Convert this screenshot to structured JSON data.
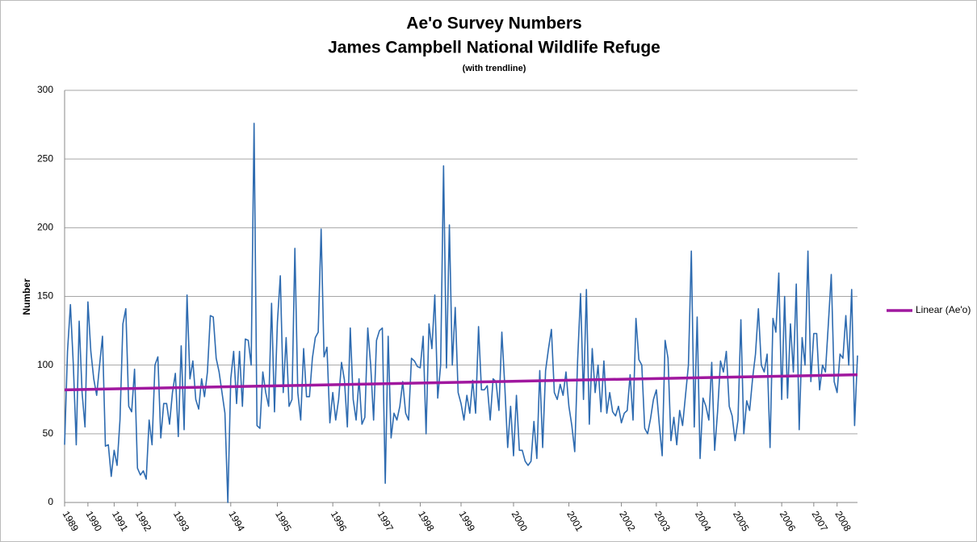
{
  "chart_data": {
    "type": "line",
    "title": "Ae'o Survey Numbers",
    "subtitle": "James Campbell National Wildlife Refuge",
    "note": "(with trendline)",
    "y_label": "Number",
    "categories": [
      "1989",
      null,
      null,
      null,
      null,
      null,
      null,
      null,
      "1990",
      null,
      null,
      null,
      null,
      null,
      null,
      null,
      null,
      "1991",
      null,
      null,
      null,
      null,
      null,
      null,
      null,
      "1992",
      null,
      null,
      null,
      null,
      null,
      null,
      null,
      null,
      null,
      null,
      null,
      null,
      "1993",
      null,
      null,
      null,
      null,
      null,
      null,
      null,
      null,
      null,
      null,
      null,
      null,
      null,
      null,
      null,
      null,
      null,
      null,
      "1994",
      null,
      null,
      null,
      null,
      null,
      null,
      null,
      null,
      null,
      null,
      null,
      null,
      null,
      null,
      null,
      "1995",
      null,
      null,
      null,
      null,
      null,
      null,
      null,
      null,
      null,
      null,
      null,
      null,
      null,
      null,
      null,
      null,
      null,
      null,
      "1996",
      null,
      null,
      null,
      null,
      null,
      null,
      null,
      null,
      null,
      null,
      null,
      null,
      null,
      null,
      null,
      "1997",
      null,
      null,
      null,
      null,
      null,
      null,
      null,
      null,
      null,
      null,
      null,
      null,
      null,
      "1998",
      null,
      null,
      null,
      null,
      null,
      null,
      null,
      null,
      null,
      null,
      null,
      null,
      null,
      "1999",
      null,
      null,
      null,
      null,
      null,
      null,
      null,
      null,
      null,
      null,
      null,
      null,
      null,
      null,
      null,
      null,
      null,
      "2000",
      null,
      null,
      null,
      null,
      null,
      null,
      null,
      null,
      null,
      null,
      null,
      null,
      null,
      null,
      null,
      null,
      null,
      null,
      "2001",
      null,
      null,
      null,
      null,
      null,
      null,
      null,
      null,
      null,
      null,
      null,
      null,
      null,
      null,
      null,
      null,
      null,
      "2002",
      null,
      null,
      null,
      null,
      null,
      null,
      null,
      null,
      null,
      null,
      null,
      "2003",
      null,
      null,
      null,
      null,
      null,
      null,
      null,
      null,
      null,
      null,
      null,
      null,
      null,
      "2004",
      null,
      null,
      null,
      null,
      null,
      null,
      null,
      null,
      null,
      null,
      null,
      null,
      "2005",
      null,
      null,
      null,
      null,
      null,
      null,
      null,
      null,
      null,
      null,
      null,
      null,
      null,
      null,
      null,
      "2006",
      null,
      null,
      null,
      null,
      null,
      null,
      null,
      null,
      null,
      null,
      "2007",
      null,
      null,
      null,
      null,
      null,
      null,
      null,
      "2008",
      null,
      null,
      null,
      null,
      null,
      null,
      null
    ],
    "values": [
      42,
      110,
      144,
      100,
      42,
      132,
      80,
      55,
      146,
      110,
      90,
      78,
      100,
      121,
      41,
      42,
      19,
      38,
      27,
      60,
      130,
      141,
      70,
      66,
      97,
      25,
      20,
      23,
      17,
      60,
      42,
      100,
      106,
      47,
      72,
      72,
      57,
      80,
      94,
      48,
      114,
      53,
      151,
      90,
      103,
      75,
      68,
      90,
      77,
      95,
      136,
      135,
      105,
      95,
      80,
      65,
      0,
      90,
      110,
      72,
      110,
      70,
      119,
      118,
      100,
      276,
      56,
      54,
      95,
      80,
      70,
      145,
      66,
      131,
      165,
      80,
      120,
      70,
      75,
      185,
      80,
      60,
      112,
      77,
      77,
      105,
      120,
      124,
      199,
      106,
      113,
      58,
      80,
      60,
      75,
      102,
      89,
      55,
      127,
      75,
      60,
      90,
      57,
      62,
      127,
      100,
      60,
      118,
      125,
      127,
      14,
      121,
      47,
      65,
      60,
      70,
      88,
      65,
      60,
      105,
      103,
      99,
      98,
      121,
      50,
      130,
      112,
      151,
      76,
      100,
      245,
      98,
      202,
      100,
      142,
      80,
      72,
      60,
      78,
      65,
      89,
      65,
      128,
      82,
      82,
      85,
      60,
      90,
      88,
      67,
      124,
      85,
      40,
      70,
      34,
      78,
      38,
      38,
      30,
      27,
      30,
      59,
      32,
      96,
      40,
      96,
      112,
      126,
      80,
      75,
      86,
      78,
      95,
      70,
      56,
      37,
      104,
      152,
      75,
      155,
      57,
      112,
      80,
      100,
      66,
      103,
      65,
      80,
      66,
      63,
      70,
      58,
      65,
      67,
      93,
      60,
      134,
      104,
      100,
      54,
      50,
      61,
      75,
      82,
      57,
      34,
      118,
      105,
      45,
      62,
      42,
      67,
      56,
      78,
      100,
      183,
      55,
      135,
      32,
      76,
      70,
      60,
      102,
      38,
      66,
      103,
      95,
      110,
      70,
      63,
      45,
      60,
      133,
      50,
      74,
      67,
      90,
      108,
      141,
      100,
      95,
      108,
      40,
      134,
      124,
      167,
      75,
      150,
      76,
      130,
      95,
      159,
      53,
      120,
      100,
      183,
      88,
      123,
      123,
      82,
      100,
      95,
      130,
      166,
      88,
      80,
      108,
      105,
      136,
      100,
      155,
      56,
      107
    ],
    "color": "#2e6bb0",
    "trendline": {
      "name": "Linear (Ae'o)",
      "color": "#a0189f",
      "start": 82,
      "end": 93
    },
    "ylim": [
      0,
      300
    ],
    "yticks": [
      0,
      50,
      100,
      150,
      200,
      250,
      300
    ],
    "grid": true,
    "legend": "right"
  }
}
